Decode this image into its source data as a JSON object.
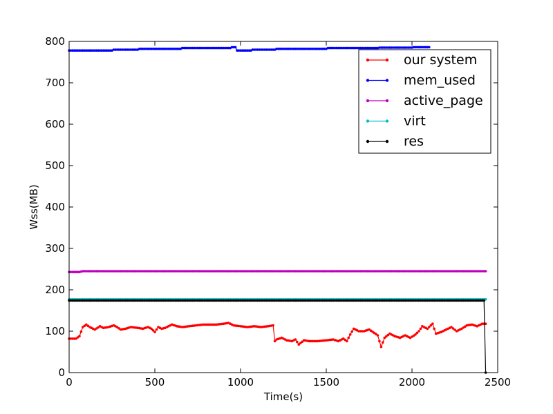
{
  "chart_data": {
    "type": "line",
    "xlabel": "Time(s)",
    "ylabel": "Wss(MB)",
    "xlim": [
      0,
      2500
    ],
    "ylim": [
      0,
      800
    ],
    "x_ticks": [
      "0",
      "500",
      "1000",
      "1500",
      "2000",
      "2500"
    ],
    "y_ticks": [
      "0",
      "100",
      "200",
      "300",
      "400",
      "500",
      "600",
      "700",
      "800"
    ],
    "grid": false,
    "legend_position": "top-right",
    "series": [
      {
        "name": "our system",
        "color": "#ff0000",
        "x": [
          0,
          40,
          60,
          80,
          100,
          120,
          150,
          180,
          200,
          230,
          260,
          280,
          300,
          330,
          360,
          400,
          430,
          460,
          480,
          500,
          520,
          540,
          560,
          600,
          630,
          660,
          700,
          740,
          780,
          820,
          860,
          900,
          930,
          960,
          1000,
          1040,
          1080,
          1120,
          1160,
          1190,
          1200,
          1210,
          1240,
          1270,
          1300,
          1320,
          1340,
          1370,
          1400,
          1450,
          1500,
          1540,
          1570,
          1600,
          1620,
          1640,
          1660,
          1690,
          1720,
          1750,
          1780,
          1800,
          1820,
          1840,
          1870,
          1900,
          1930,
          1960,
          1990,
          2020,
          2040,
          2060,
          2090,
          2120,
          2140,
          2170,
          2200,
          2230,
          2260,
          2290,
          2320,
          2350,
          2380,
          2410,
          2420,
          2430
        ],
        "y": [
          82,
          82,
          88,
          110,
          116,
          110,
          104,
          112,
          108,
          110,
          114,
          110,
          104,
          106,
          110,
          108,
          106,
          110,
          106,
          98,
          110,
          106,
          108,
          116,
          112,
          110,
          112,
          114,
          116,
          116,
          116,
          118,
          120,
          114,
          112,
          110,
          112,
          110,
          112,
          114,
          76,
          80,
          84,
          78,
          76,
          80,
          68,
          78,
          76,
          76,
          78,
          80,
          76,
          82,
          76,
          92,
          106,
          100,
          100,
          104,
          96,
          90,
          62,
          84,
          94,
          88,
          84,
          90,
          84,
          92,
          100,
          112,
          106,
          118,
          94,
          98,
          104,
          110,
          100,
          106,
          114,
          116,
          112,
          118,
          118,
          118
        ]
      },
      {
        "name": "mem_used",
        "color": "#0000ff",
        "x": [
          0,
          150,
          160,
          250,
          260,
          400,
          410,
          650,
          660,
          940,
          950,
          970,
          980,
          1060,
          1070,
          1200,
          1210,
          1500,
          1510,
          1800,
          1810,
          2000,
          2010,
          2100
        ],
        "y": [
          778,
          778,
          778,
          778,
          780,
          780,
          782,
          782,
          784,
          784,
          786,
          786,
          778,
          778,
          780,
          780,
          782,
          782,
          784,
          784,
          785,
          785,
          786,
          786
        ]
      },
      {
        "name": "active_page",
        "color": "#bf00bf",
        "x": [
          0,
          60,
          80,
          2430
        ],
        "y": [
          243,
          243,
          245,
          245
        ]
      },
      {
        "name": "virt",
        "color": "#00bfbf",
        "x": [
          0,
          2430
        ],
        "y": [
          177,
          177
        ]
      },
      {
        "name": "res",
        "color": "#000000",
        "x": [
          0,
          2420,
          2430
        ],
        "y": [
          174,
          174,
          0
        ]
      }
    ]
  }
}
